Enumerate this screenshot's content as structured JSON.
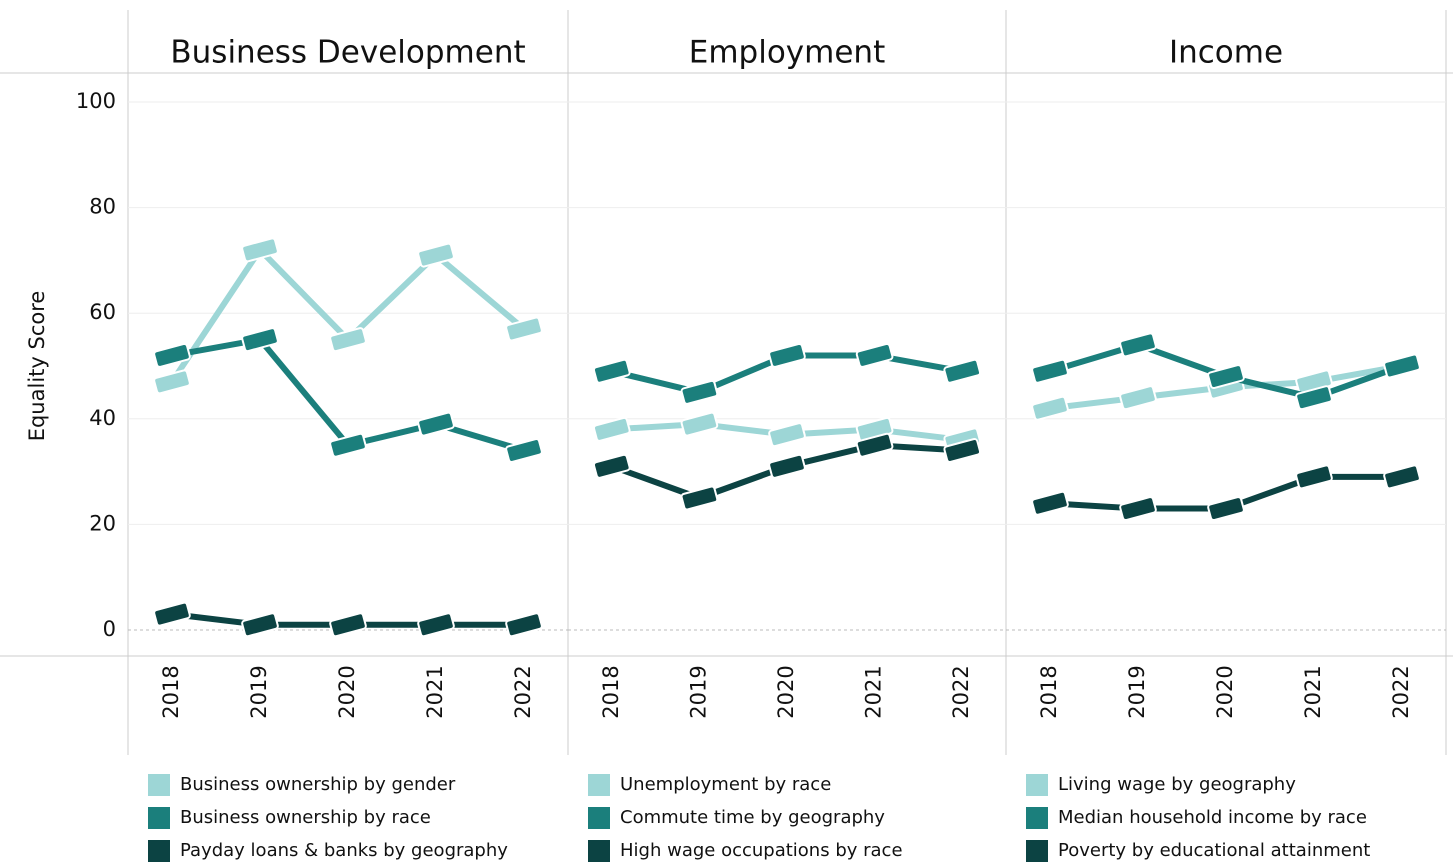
{
  "chart_data": [
    {
      "type": "line",
      "title": "Business Development",
      "y_label": "Equality Score",
      "categories": [
        "2018",
        "2019",
        "2020",
        "2021",
        "2022"
      ],
      "ylim": [
        0,
        100
      ],
      "yticks": [
        0,
        20,
        40,
        60,
        80,
        100
      ],
      "grid": true,
      "series": [
        {
          "name": "Business ownership by gender",
          "color": "#9dd6d6",
          "values": [
            47,
            72,
            55,
            71,
            57
          ]
        },
        {
          "name": "Business ownership by race",
          "color": "#1b7f7c",
          "values": [
            52,
            55,
            35,
            39,
            34
          ]
        },
        {
          "name": "Payday loans & banks by geography",
          "color": "#0c4343",
          "values": [
            3,
            1,
            1,
            1,
            1
          ]
        }
      ]
    },
    {
      "type": "line",
      "title": "Employment",
      "categories": [
        "2018",
        "2019",
        "2020",
        "2021",
        "2022"
      ],
      "ylim": [
        0,
        100
      ],
      "yticks": [
        0,
        20,
        40,
        60,
        80,
        100
      ],
      "grid": true,
      "series": [
        {
          "name": "Unemployment by race",
          "color": "#9dd6d6",
          "values": [
            38,
            39,
            37,
            38,
            36
          ]
        },
        {
          "name": "Commute time by geography",
          "color": "#1b7f7c",
          "values": [
            49,
            45,
            52,
            52,
            49
          ]
        },
        {
          "name": "High wage occupations by race",
          "color": "#0c4343",
          "values": [
            31,
            25,
            31,
            35,
            34
          ]
        }
      ]
    },
    {
      "type": "line",
      "title": "Income",
      "categories": [
        "2018",
        "2019",
        "2020",
        "2021",
        "2022"
      ],
      "ylim": [
        0,
        100
      ],
      "yticks": [
        0,
        20,
        40,
        60,
        80,
        100
      ],
      "grid": true,
      "series": [
        {
          "name": "Living wage by geography",
          "color": "#9dd6d6",
          "values": [
            42,
            44,
            46,
            47,
            50
          ]
        },
        {
          "name": "Median household income by race",
          "color": "#1b7f7c",
          "values": [
            49,
            54,
            48,
            44,
            50
          ]
        },
        {
          "name": "Poverty by educational attainment",
          "color": "#0c4343",
          "values": [
            24,
            23,
            23,
            29,
            29
          ]
        }
      ]
    }
  ]
}
